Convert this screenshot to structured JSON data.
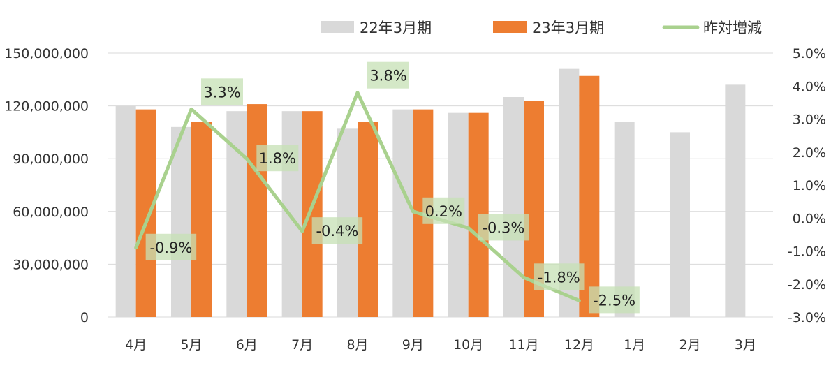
{
  "chart_data": {
    "type": "bar",
    "categories": [
      "4月",
      "5月",
      "6月",
      "7月",
      "8月",
      "9月",
      "10月",
      "11月",
      "12月",
      "1月",
      "2月",
      "3月"
    ],
    "series": [
      {
        "name": "22年3月期",
        "kind": "bar",
        "axis": "left",
        "color": "#d9d9d9",
        "values": [
          120000000,
          108000000,
          117000000,
          117000000,
          107000000,
          118000000,
          116000000,
          125000000,
          141000000,
          111000000,
          105000000,
          132000000
        ]
      },
      {
        "name": "23年3月期",
        "kind": "bar",
        "axis": "left",
        "color": "#ed7d31",
        "values": [
          118000000,
          111000000,
          121000000,
          117000000,
          111000000,
          118000000,
          116000000,
          123000000,
          137000000,
          null,
          null,
          null
        ]
      },
      {
        "name": "昨対増減",
        "kind": "line",
        "axis": "right",
        "color": "#a9d18e",
        "values": [
          -0.9,
          3.3,
          1.8,
          -0.4,
          3.8,
          0.2,
          -0.3,
          -1.8,
          -2.5,
          null,
          null,
          null
        ],
        "data_labels": [
          "-0.9%",
          "3.3%",
          "1.8%",
          "-0.4%",
          "3.8%",
          "0.2%",
          "-0.3%",
          "-1.8%",
          "-2.5%"
        ]
      }
    ],
    "y_left": {
      "min": 0,
      "max": 150000000,
      "ticks": [
        0,
        30000000,
        60000000,
        90000000,
        120000000,
        150000000
      ],
      "tick_labels": [
        "0",
        "30,000,000",
        "60,000,000",
        "90,000,000",
        "120,000,000",
        "150,000,000"
      ]
    },
    "y_right": {
      "min": -3.0,
      "max": 5.0,
      "ticks": [
        -3,
        -2,
        -1,
        0,
        1,
        2,
        3,
        4,
        5
      ],
      "tick_labels": [
        "-3.0%",
        "-2.0%",
        "-1.0%",
        "0.0%",
        "1.0%",
        "2.0%",
        "3.0%",
        "4.0%",
        "5.0%"
      ]
    },
    "grid": true,
    "legend_position": "top"
  },
  "style": {
    "grid_color": "#d9d9d9",
    "label_bg_orange": "#f4b183",
    "label_bg_green": "#c5e0b4"
  }
}
